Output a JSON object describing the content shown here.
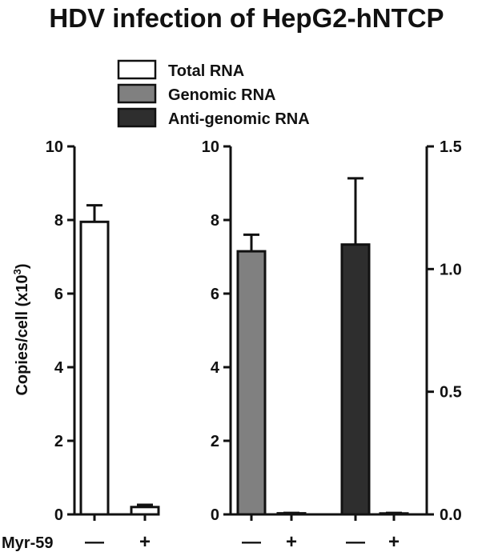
{
  "chart_data": {
    "type": "bar",
    "title": "HDV infection of HepG2-hNTCP",
    "ylabel": "Copies/cell (x10",
    "ylabel_sup": "3",
    "ylabel_close": ")",
    "treatment_label": "Myr-59",
    "treatment_levels": [
      "—",
      "+"
    ],
    "legend": [
      {
        "name": "Total RNA",
        "color": "#ffffff"
      },
      {
        "name": "Genomic RNA",
        "color": "#808080"
      },
      {
        "name": "Anti-genomic RNA",
        "color": "#2e2e2e"
      }
    ],
    "panels": [
      {
        "ylim": [
          0,
          10
        ],
        "yticks": [
          "0",
          "2",
          "4",
          "6",
          "8",
          "10"
        ],
        "bars": [
          {
            "series": "Total RNA",
            "treatment": "—",
            "value": 7.95,
            "error": 0.45
          },
          {
            "series": "Total RNA",
            "treatment": "+",
            "value": 0.2,
            "error": 0.06
          }
        ]
      },
      {
        "ylim": [
          0,
          10
        ],
        "yticks": [
          "0",
          "2",
          "4",
          "6",
          "8",
          "10"
        ],
        "y2lim": [
          0,
          1.5
        ],
        "y2ticks": [
          "0.0",
          "0.5",
          "1.0",
          "1.5"
        ],
        "bars": [
          {
            "series": "Genomic RNA",
            "treatment": "—",
            "value": 7.15,
            "error": 0.45,
            "axis": "left"
          },
          {
            "series": "Genomic RNA",
            "treatment": "+",
            "value": 0.03,
            "error": 0.01,
            "axis": "left"
          },
          {
            "series": "Anti-genomic RNA",
            "treatment": "—",
            "value": 1.1,
            "error": 0.27,
            "axis": "right"
          },
          {
            "series": "Anti-genomic RNA",
            "treatment": "+",
            "value": 0.004,
            "error": 0.002,
            "axis": "right"
          }
        ]
      }
    ]
  }
}
